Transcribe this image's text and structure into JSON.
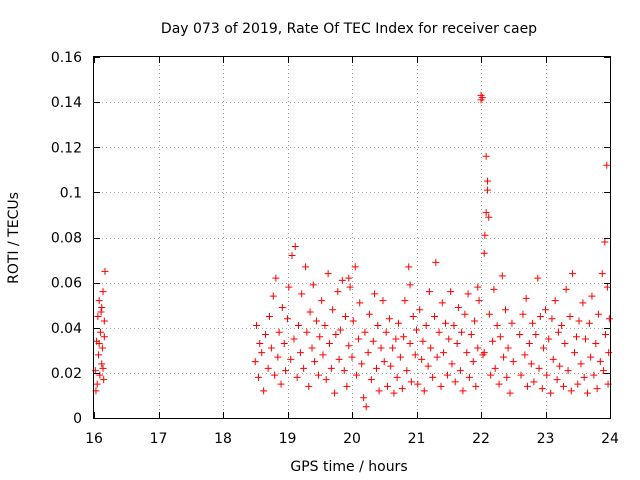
{
  "chart_data": {
    "type": "scatter",
    "title": "Day 073 of 2019, Rate Of TEC Index for receiver caep",
    "xlabel": "GPS time / hours",
    "ylabel": "ROTI / TECUs",
    "xlim": [
      16,
      24
    ],
    "ylim": [
      0,
      0.16
    ],
    "grid": true,
    "marker": "+",
    "color": "#ff0000",
    "x_ticks": [
      {
        "value": 16,
        "label": "16"
      },
      {
        "value": 17,
        "label": "17"
      },
      {
        "value": 18,
        "label": "18"
      },
      {
        "value": 19,
        "label": "19"
      },
      {
        "value": 20,
        "label": "20"
      },
      {
        "value": 21,
        "label": "21"
      },
      {
        "value": 22,
        "label": "22"
      },
      {
        "value": 23,
        "label": "23"
      },
      {
        "value": 24,
        "label": "24"
      }
    ],
    "y_ticks": [
      {
        "value": 0,
        "label": "0"
      },
      {
        "value": 0.02,
        "label": "0.02"
      },
      {
        "value": 0.04,
        "label": "0.04"
      },
      {
        "value": 0.06,
        "label": "0.06"
      },
      {
        "value": 0.08,
        "label": "0.08"
      },
      {
        "value": 0.1,
        "label": "0.1"
      },
      {
        "value": 0.12,
        "label": "0.12"
      },
      {
        "value": 0.14,
        "label": "0.14"
      },
      {
        "value": 0.16,
        "label": "0.16"
      }
    ],
    "series": [
      {
        "name": "ROTI",
        "points": [
          [
            16.02,
            0.021
          ],
          [
            16.04,
            0.034
          ],
          [
            16.05,
            0.015
          ],
          [
            16.06,
            0.045
          ],
          [
            16.07,
            0.028
          ],
          [
            16.08,
            0.052
          ],
          [
            16.09,
            0.019
          ],
          [
            16.1,
            0.038
          ],
          [
            16.11,
            0.047
          ],
          [
            16.12,
            0.024
          ],
          [
            16.13,
            0.031
          ],
          [
            16.14,
            0.056
          ],
          [
            16.15,
            0.017
          ],
          [
            16.16,
            0.043
          ],
          [
            16.17,
            0.065
          ],
          [
            16.03,
            0.012
          ],
          [
            16.08,
            0.033
          ],
          [
            16.12,
            0.049
          ],
          [
            16.14,
            0.022
          ],
          [
            16.16,
            0.036
          ],
          [
            18.5,
            0.025
          ],
          [
            18.52,
            0.041
          ],
          [
            18.55,
            0.018
          ],
          [
            18.57,
            0.033
          ],
          [
            18.6,
            0.029
          ],
          [
            18.63,
            0.012
          ],
          [
            18.66,
            0.037
          ],
          [
            18.7,
            0.022
          ],
          [
            18.72,
            0.045
          ],
          [
            18.75,
            0.031
          ],
          [
            18.78,
            0.054
          ],
          [
            18.8,
            0.019
          ],
          [
            18.82,
            0.062
          ],
          [
            18.85,
            0.027
          ],
          [
            18.87,
            0.038
          ],
          [
            18.9,
            0.015
          ],
          [
            18.92,
            0.049
          ],
          [
            18.95,
            0.033
          ],
          [
            18.97,
            0.021
          ],
          [
            19.0,
            0.044
          ],
          [
            19.02,
            0.058
          ],
          [
            19.05,
            0.026
          ],
          [
            19.07,
            0.072
          ],
          [
            19.1,
            0.035
          ],
          [
            19.12,
            0.076
          ],
          [
            19.15,
            0.018
          ],
          [
            19.17,
            0.041
          ],
          [
            19.2,
            0.029
          ],
          [
            19.22,
            0.055
          ],
          [
            19.25,
            0.022
          ],
          [
            19.28,
            0.067
          ],
          [
            19.3,
            0.038
          ],
          [
            19.33,
            0.014
          ],
          [
            19.35,
            0.047
          ],
          [
            19.38,
            0.031
          ],
          [
            19.4,
            0.059
          ],
          [
            19.42,
            0.025
          ],
          [
            19.45,
            0.043
          ],
          [
            19.48,
            0.019
          ],
          [
            19.5,
            0.036
          ],
          [
            19.53,
            0.052
          ],
          [
            19.55,
            0.028
          ],
          [
            19.58,
            0.041
          ],
          [
            19.6,
            0.017
          ],
          [
            19.63,
            0.064
          ],
          [
            19.65,
            0.033
          ],
          [
            19.68,
            0.022
          ],
          [
            19.7,
            0.048
          ],
          [
            19.73,
            0.011
          ],
          [
            19.75,
            0.037
          ],
          [
            19.78,
            0.056
          ],
          [
            19.8,
            0.026
          ],
          [
            19.82,
            0.039
          ],
          [
            19.85,
            0.061
          ],
          [
            19.88,
            0.021
          ],
          [
            19.9,
            0.045
          ],
          [
            19.92,
            0.014
          ],
          [
            19.95,
            0.032
          ],
          [
            19.97,
            0.058
          ],
          [
            20.0,
            0.027
          ],
          [
            20.02,
            0.043
          ],
          [
            20.05,
            0.067
          ],
          [
            20.07,
            0.019
          ],
          [
            20.1,
            0.035
          ],
          [
            20.12,
            0.051
          ],
          [
            20.15,
            0.024
          ],
          [
            20.18,
            0.009
          ],
          [
            20.2,
            0.038
          ],
          [
            20.22,
            0.005
          ],
          [
            20.25,
            0.029
          ],
          [
            20.27,
            0.046
          ],
          [
            20.3,
            0.017
          ],
          [
            20.33,
            0.034
          ],
          [
            20.35,
            0.055
          ],
          [
            20.38,
            0.022
          ],
          [
            20.4,
            0.041
          ],
          [
            20.42,
            0.012
          ],
          [
            20.45,
            0.031
          ],
          [
            20.48,
            0.052
          ],
          [
            20.5,
            0.025
          ],
          [
            20.53,
            0.038
          ],
          [
            20.55,
            0.014
          ],
          [
            20.58,
            0.044
          ],
          [
            20.6,
            0.023
          ],
          [
            20.63,
            0.031
          ],
          [
            20.65,
            0.011
          ],
          [
            20.68,
            0.035
          ],
          [
            20.7,
            0.018
          ],
          [
            20.72,
            0.042
          ],
          [
            20.75,
            0.027
          ],
          [
            20.78,
            0.013
          ],
          [
            20.8,
            0.036
          ],
          [
            20.82,
            0.052
          ],
          [
            20.85,
            0.021
          ],
          [
            20.88,
            0.067
          ],
          [
            20.9,
            0.033
          ],
          [
            20.92,
            0.016
          ],
          [
            20.95,
            0.045
          ],
          [
            20.98,
            0.028
          ],
          [
            21.0,
            0.039
          ],
          [
            21.02,
            0.015
          ],
          [
            21.05,
            0.048
          ],
          [
            21.08,
            0.026
          ],
          [
            21.1,
            0.034
          ],
          [
            21.12,
            0.012
          ],
          [
            21.15,
            0.041
          ],
          [
            21.18,
            0.023
          ],
          [
            21.2,
            0.056
          ],
          [
            21.22,
            0.031
          ],
          [
            21.25,
            0.018
          ],
          [
            21.28,
            0.045
          ],
          [
            21.3,
            0.069
          ],
          [
            21.32,
            0.027
          ],
          [
            21.35,
            0.038
          ],
          [
            21.38,
            0.014
          ],
          [
            21.4,
            0.051
          ],
          [
            21.42,
            0.029
          ],
          [
            21.45,
            0.042
          ],
          [
            21.48,
            0.019
          ],
          [
            21.5,
            0.035
          ],
          [
            21.53,
            0.056
          ],
          [
            21.55,
            0.024
          ],
          [
            21.58,
            0.041
          ],
          [
            21.6,
            0.016
          ],
          [
            21.63,
            0.033
          ],
          [
            21.65,
            0.049
          ],
          [
            21.68,
            0.021
          ],
          [
            21.7,
            0.038
          ],
          [
            21.72,
            0.012
          ],
          [
            21.75,
            0.046
          ],
          [
            21.78,
            0.029
          ],
          [
            21.8,
            0.055
          ],
          [
            21.82,
            0.018
          ],
          [
            21.85,
            0.037
          ],
          [
            21.88,
            0.025
          ],
          [
            21.9,
            0.043
          ],
          [
            21.92,
            0.014
          ],
          [
            21.95,
            0.031
          ],
          [
            21.97,
            0.052
          ],
          [
            22.0,
            0.143
          ],
          [
            22.0,
            0.141
          ],
          [
            22.02,
            0.142
          ],
          [
            22.03,
            0.028
          ],
          [
            22.05,
            0.073
          ],
          [
            22.06,
            0.081
          ],
          [
            22.08,
            0.116
          ],
          [
            22.08,
            0.091
          ],
          [
            22.1,
            0.105
          ],
          [
            22.1,
            0.101
          ],
          [
            22.12,
            0.089
          ],
          [
            22.13,
            0.046
          ],
          [
            22.15,
            0.019
          ],
          [
            22.18,
            0.034
          ],
          [
            22.2,
            0.057
          ],
          [
            22.22,
            0.022
          ],
          [
            22.25,
            0.041
          ],
          [
            22.28,
            0.015
          ],
          [
            22.3,
            0.036
          ],
          [
            22.33,
            0.063
          ],
          [
            22.35,
            0.027
          ],
          [
            22.38,
            0.048
          ],
          [
            22.4,
            0.018
          ],
          [
            22.42,
            0.031
          ],
          [
            22.45,
            0.011
          ],
          [
            22.48,
            0.042
          ],
          [
            22.5,
            0.025
          ],
          [
            22.6,
            0.037
          ],
          [
            22.62,
            0.019
          ],
          [
            22.65,
            0.046
          ],
          [
            22.68,
            0.028
          ],
          [
            22.7,
            0.053
          ],
          [
            22.72,
            0.014
          ],
          [
            22.75,
            0.033
          ],
          [
            22.78,
            0.024
          ],
          [
            22.8,
            0.042
          ],
          [
            22.82,
            0.016
          ],
          [
            22.85,
            0.037
          ],
          [
            22.88,
            0.062
          ],
          [
            22.9,
            0.022
          ],
          [
            22.92,
            0.045
          ],
          [
            22.95,
            0.013
          ],
          [
            22.97,
            0.031
          ],
          [
            23.0,
            0.048
          ],
          [
            23.02,
            0.019
          ],
          [
            23.05,
            0.035
          ],
          [
            23.08,
            0.011
          ],
          [
            23.1,
            0.044
          ],
          [
            23.12,
            0.026
          ],
          [
            23.15,
            0.052
          ],
          [
            23.18,
            0.017
          ],
          [
            23.2,
            0.038
          ],
          [
            23.22,
            0.023
          ],
          [
            23.25,
            0.041
          ],
          [
            23.28,
            0.014
          ],
          [
            23.3,
            0.033
          ],
          [
            23.32,
            0.057
          ],
          [
            23.35,
            0.021
          ],
          [
            23.38,
            0.045
          ],
          [
            23.4,
            0.012
          ],
          [
            23.42,
            0.064
          ],
          [
            23.45,
            0.029
          ],
          [
            23.48,
            0.036
          ],
          [
            23.5,
            0.015
          ],
          [
            23.52,
            0.043
          ],
          [
            23.55,
            0.024
          ],
          [
            23.58,
            0.051
          ],
          [
            23.6,
            0.018
          ],
          [
            23.62,
            0.035
          ],
          [
            23.65,
            0.011
          ],
          [
            23.68,
            0.042
          ],
          [
            23.7,
            0.027
          ],
          [
            23.72,
            0.054
          ],
          [
            23.75,
            0.019
          ],
          [
            23.78,
            0.033
          ],
          [
            23.8,
            0.013
          ],
          [
            23.82,
            0.046
          ],
          [
            23.85,
            0.025
          ],
          [
            23.88,
            0.064
          ],
          [
            23.9,
            0.021
          ],
          [
            23.92,
            0.078
          ],
          [
            23.93,
            0.037
          ],
          [
            23.95,
            0.112
          ],
          [
            23.96,
            0.058
          ],
          [
            23.97,
            0.015
          ],
          [
            23.98,
            0.029
          ],
          [
            23.99,
            0.044
          ],
          [
            22.05,
            0.029
          ],
          [
            21.95,
            0.058
          ],
          [
            20.9,
            0.059
          ],
          [
            19.95,
            0.062
          ]
        ]
      }
    ]
  }
}
